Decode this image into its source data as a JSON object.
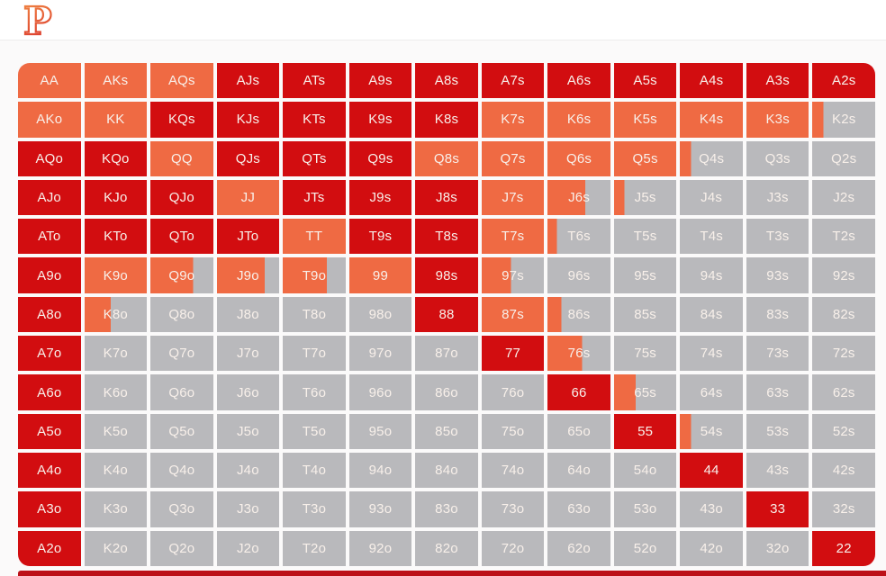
{
  "header": {
    "logo_letter": "P"
  },
  "colors": {
    "red": "#d20d10",
    "orange": "#ef6a43",
    "gray": "#b9b9bc",
    "cell_text": "#f8f0ea",
    "page_bg": "#fbfafa",
    "header_bg": "#ffffff",
    "header_border": "#ececec",
    "bottom_bar": "#bc1118",
    "logo_gradient_top": "#f28c45",
    "logo_gradient_bottom": "#dc3c2f"
  },
  "grid": {
    "columns": 13,
    "rows_count": 13,
    "fill_note": "each cell = [hand, color, percent filled from left with that color; remainder is gray]",
    "rows": [
      [
        [
          "AA",
          "orange",
          100
        ],
        [
          "AKs",
          "orange",
          100
        ],
        [
          "AQs",
          "orange",
          100
        ],
        [
          "AJs",
          "red",
          100
        ],
        [
          "ATs",
          "red",
          100
        ],
        [
          "A9s",
          "red",
          100
        ],
        [
          "A8s",
          "red",
          100
        ],
        [
          "A7s",
          "red",
          100
        ],
        [
          "A6s",
          "red",
          100
        ],
        [
          "A5s",
          "red",
          100
        ],
        [
          "A4s",
          "red",
          100
        ],
        [
          "A3s",
          "red",
          100
        ],
        [
          "A2s",
          "red",
          100
        ]
      ],
      [
        [
          "AKo",
          "orange",
          100
        ],
        [
          "KK",
          "orange",
          100
        ],
        [
          "KQs",
          "red",
          100
        ],
        [
          "KJs",
          "red",
          100
        ],
        [
          "KTs",
          "red",
          100
        ],
        [
          "K9s",
          "red",
          100
        ],
        [
          "K8s",
          "red",
          100
        ],
        [
          "K7s",
          "orange",
          100
        ],
        [
          "K6s",
          "orange",
          100
        ],
        [
          "K5s",
          "orange",
          100
        ],
        [
          "K4s",
          "orange",
          100
        ],
        [
          "K3s",
          "orange",
          100
        ],
        [
          "K2s",
          "orange",
          18
        ]
      ],
      [
        [
          "AQo",
          "red",
          100
        ],
        [
          "KQo",
          "red",
          100
        ],
        [
          "QQ",
          "orange",
          100
        ],
        [
          "QJs",
          "red",
          100
        ],
        [
          "QTs",
          "red",
          100
        ],
        [
          "Q9s",
          "red",
          100
        ],
        [
          "Q8s",
          "orange",
          100
        ],
        [
          "Q7s",
          "orange",
          100
        ],
        [
          "Q6s",
          "orange",
          100
        ],
        [
          "Q5s",
          "orange",
          100
        ],
        [
          "Q4s",
          "orange",
          18
        ],
        [
          "Q3s",
          "gray",
          100
        ],
        [
          "Q2s",
          "gray",
          100
        ]
      ],
      [
        [
          "AJo",
          "red",
          100
        ],
        [
          "KJo",
          "red",
          100
        ],
        [
          "QJo",
          "red",
          100
        ],
        [
          "JJ",
          "orange",
          100
        ],
        [
          "JTs",
          "red",
          100
        ],
        [
          "J9s",
          "red",
          100
        ],
        [
          "J8s",
          "red",
          100
        ],
        [
          "J7s",
          "orange",
          100
        ],
        [
          "J6s",
          "orange",
          60
        ],
        [
          "J5s",
          "orange",
          17
        ],
        [
          "J4s",
          "gray",
          100
        ],
        [
          "J3s",
          "gray",
          100
        ],
        [
          "J2s",
          "gray",
          100
        ]
      ],
      [
        [
          "ATo",
          "red",
          100
        ],
        [
          "KTo",
          "red",
          100
        ],
        [
          "QTo",
          "red",
          100
        ],
        [
          "JTo",
          "red",
          100
        ],
        [
          "TT",
          "orange",
          100
        ],
        [
          "T9s",
          "red",
          100
        ],
        [
          "T8s",
          "red",
          100
        ],
        [
          "T7s",
          "orange",
          100
        ],
        [
          "T6s",
          "orange",
          15
        ],
        [
          "T5s",
          "gray",
          100
        ],
        [
          "T4s",
          "gray",
          100
        ],
        [
          "T3s",
          "gray",
          100
        ],
        [
          "T2s",
          "gray",
          100
        ]
      ],
      [
        [
          "A9o",
          "red",
          100
        ],
        [
          "K9o",
          "orange",
          100
        ],
        [
          "Q9o",
          "orange",
          68
        ],
        [
          "J9o",
          "orange",
          77
        ],
        [
          "T9o",
          "orange",
          70
        ],
        [
          "99",
          "orange",
          100
        ],
        [
          "98s",
          "red",
          100
        ],
        [
          "97s",
          "orange",
          47
        ],
        [
          "96s",
          "gray",
          100
        ],
        [
          "95s",
          "gray",
          100
        ],
        [
          "94s",
          "gray",
          100
        ],
        [
          "93s",
          "gray",
          100
        ],
        [
          "92s",
          "gray",
          100
        ]
      ],
      [
        [
          "A8o",
          "red",
          100
        ],
        [
          "K8o",
          "orange",
          42
        ],
        [
          "Q8o",
          "gray",
          100
        ],
        [
          "J8o",
          "gray",
          100
        ],
        [
          "T8o",
          "gray",
          100
        ],
        [
          "98o",
          "gray",
          100
        ],
        [
          "88",
          "red",
          100
        ],
        [
          "87s",
          "orange",
          100
        ],
        [
          "86s",
          "orange",
          22
        ],
        [
          "85s",
          "gray",
          100
        ],
        [
          "84s",
          "gray",
          100
        ],
        [
          "83s",
          "gray",
          100
        ],
        [
          "82s",
          "gray",
          100
        ]
      ],
      [
        [
          "A7o",
          "red",
          100
        ],
        [
          "K7o",
          "gray",
          100
        ],
        [
          "Q7o",
          "gray",
          100
        ],
        [
          "J7o",
          "gray",
          100
        ],
        [
          "T7o",
          "gray",
          100
        ],
        [
          "97o",
          "gray",
          100
        ],
        [
          "87o",
          "gray",
          100
        ],
        [
          "77",
          "red",
          100
        ],
        [
          "76s",
          "orange",
          55
        ],
        [
          "75s",
          "gray",
          100
        ],
        [
          "74s",
          "gray",
          100
        ],
        [
          "73s",
          "gray",
          100
        ],
        [
          "72s",
          "gray",
          100
        ]
      ],
      [
        [
          "A6o",
          "red",
          100
        ],
        [
          "K6o",
          "gray",
          100
        ],
        [
          "Q6o",
          "gray",
          100
        ],
        [
          "J6o",
          "gray",
          100
        ],
        [
          "T6o",
          "gray",
          100
        ],
        [
          "96o",
          "gray",
          100
        ],
        [
          "86o",
          "gray",
          100
        ],
        [
          "76o",
          "gray",
          100
        ],
        [
          "66",
          "red",
          100
        ],
        [
          "65s",
          "orange",
          35
        ],
        [
          "64s",
          "gray",
          100
        ],
        [
          "63s",
          "gray",
          100
        ],
        [
          "62s",
          "gray",
          100
        ]
      ],
      [
        [
          "A5o",
          "red",
          100
        ],
        [
          "K5o",
          "gray",
          100
        ],
        [
          "Q5o",
          "gray",
          100
        ],
        [
          "J5o",
          "gray",
          100
        ],
        [
          "T5o",
          "gray",
          100
        ],
        [
          "95o",
          "gray",
          100
        ],
        [
          "85o",
          "gray",
          100
        ],
        [
          "75o",
          "gray",
          100
        ],
        [
          "65o",
          "gray",
          100
        ],
        [
          "55",
          "red",
          100
        ],
        [
          "54s",
          "orange",
          18
        ],
        [
          "53s",
          "gray",
          100
        ],
        [
          "52s",
          "gray",
          100
        ]
      ],
      [
        [
          "A4o",
          "red",
          100
        ],
        [
          "K4o",
          "gray",
          100
        ],
        [
          "Q4o",
          "gray",
          100
        ],
        [
          "J4o",
          "gray",
          100
        ],
        [
          "T4o",
          "gray",
          100
        ],
        [
          "94o",
          "gray",
          100
        ],
        [
          "84o",
          "gray",
          100
        ],
        [
          "74o",
          "gray",
          100
        ],
        [
          "64o",
          "gray",
          100
        ],
        [
          "54o",
          "gray",
          100
        ],
        [
          "44",
          "red",
          100
        ],
        [
          "43s",
          "gray",
          100
        ],
        [
          "42s",
          "gray",
          100
        ]
      ],
      [
        [
          "A3o",
          "red",
          100
        ],
        [
          "K3o",
          "gray",
          100
        ],
        [
          "Q3o",
          "gray",
          100
        ],
        [
          "J3o",
          "gray",
          100
        ],
        [
          "T3o",
          "gray",
          100
        ],
        [
          "93o",
          "gray",
          100
        ],
        [
          "83o",
          "gray",
          100
        ],
        [
          "73o",
          "gray",
          100
        ],
        [
          "63o",
          "gray",
          100
        ],
        [
          "53o",
          "gray",
          100
        ],
        [
          "43o",
          "gray",
          100
        ],
        [
          "33",
          "red",
          100
        ],
        [
          "32s",
          "gray",
          100
        ]
      ],
      [
        [
          "A2o",
          "red",
          100
        ],
        [
          "K2o",
          "gray",
          100
        ],
        [
          "Q2o",
          "gray",
          100
        ],
        [
          "J2o",
          "gray",
          100
        ],
        [
          "T2o",
          "gray",
          100
        ],
        [
          "92o",
          "gray",
          100
        ],
        [
          "82o",
          "gray",
          100
        ],
        [
          "72o",
          "gray",
          100
        ],
        [
          "62o",
          "gray",
          100
        ],
        [
          "52o",
          "gray",
          100
        ],
        [
          "42o",
          "gray",
          100
        ],
        [
          "32o",
          "gray",
          100
        ],
        [
          "22",
          "red",
          100
        ]
      ]
    ]
  }
}
